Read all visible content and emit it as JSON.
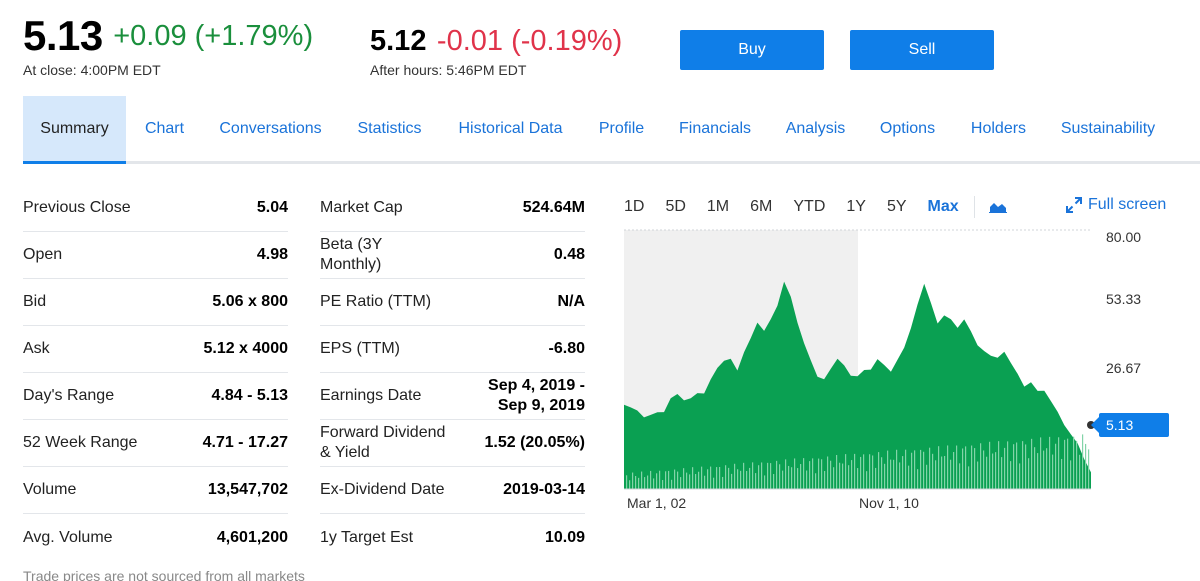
{
  "quote": {
    "price": "5.13",
    "change": "+0.09 (+1.79%)",
    "close_caption": "At close: 4:00PM EDT",
    "ah_price": "5.12",
    "ah_change": "-0.01 (-0.19%)",
    "ah_caption": "After hours: 5:46PM EDT"
  },
  "actions": {
    "buy": "Buy",
    "sell": "Sell"
  },
  "tabs": [
    {
      "label": "Summary"
    },
    {
      "label": "Chart"
    },
    {
      "label": "Conversations"
    },
    {
      "label": "Statistics"
    },
    {
      "label": "Historical Data"
    },
    {
      "label": "Profile"
    },
    {
      "label": "Financials"
    },
    {
      "label": "Analysis"
    },
    {
      "label": "Options"
    },
    {
      "label": "Holders"
    },
    {
      "label": "Sustainability"
    }
  ],
  "left_stats": [
    {
      "label": "Previous Close",
      "value": "5.04"
    },
    {
      "label": "Open",
      "value": "4.98"
    },
    {
      "label": "Bid",
      "value": "5.06 x 800"
    },
    {
      "label": "Ask",
      "value": "5.12 x 4000"
    },
    {
      "label": "Day's Range",
      "value": "4.84 - 5.13"
    },
    {
      "label": "52 Week Range",
      "value": "4.71 - 17.27"
    },
    {
      "label": "Volume",
      "value": "13,547,702"
    },
    {
      "label": "Avg. Volume",
      "value": "4,601,200"
    }
  ],
  "right_stats": [
    {
      "label": "Market Cap",
      "value": "524.64M"
    },
    {
      "label": "Beta (3Y Monthly)",
      "value": "0.48"
    },
    {
      "label": "PE Ratio (TTM)",
      "value": "N/A"
    },
    {
      "label": "EPS (TTM)",
      "value": "-6.80"
    },
    {
      "label": "Earnings Date",
      "value": "Sep 4, 2019 - Sep 9, 2019"
    },
    {
      "label": "Forward Dividend & Yield",
      "value": "1.52 (20.05%)"
    },
    {
      "label": "Ex-Dividend Date",
      "value": "2019-03-14"
    },
    {
      "label": "1y Target Est",
      "value": "10.09"
    }
  ],
  "disclaimer": "Trade prices are not sourced from all markets",
  "chart_controls": {
    "ranges": [
      "1D",
      "5D",
      "1M",
      "6M",
      "YTD",
      "1Y",
      "5Y",
      "Max"
    ],
    "active_range": "Max",
    "chart_type_icon": "mountain-chart-icon",
    "fullscreen_label": "Full screen",
    "fullscreen_icon": "expand-arrows-icon"
  },
  "chart_data": {
    "type": "area",
    "y_ticks": [
      "80.00",
      "53.33",
      "26.67"
    ],
    "x_ticks": [
      "Mar 1, 02",
      "Nov 1, 10"
    ],
    "ylim": [
      0,
      80
    ],
    "current_price_label": "5.13",
    "current_price": 5.13,
    "series": [
      {
        "values": [
          26,
          24,
          23,
          22,
          24,
          25,
          24,
          27,
          28,
          27,
          29,
          31,
          30,
          33,
          36,
          39,
          41,
          38,
          43,
          46,
          50,
          48,
          53,
          58,
          65,
          59,
          50,
          44,
          40,
          36,
          35,
          37,
          39,
          37,
          35,
          36,
          38,
          37,
          39,
          37,
          36,
          41,
          45,
          50,
          56,
          62,
          57,
          52,
          55,
          53,
          49,
          51,
          48,
          45,
          44,
          42,
          40,
          41,
          38,
          36,
          33,
          34,
          30,
          29,
          26,
          24,
          21,
          18,
          14,
          8,
          5.13
        ]
      }
    ],
    "colors": {
      "area": "#0aa052",
      "volume": "#82d4a8",
      "shade": "#f0f0f0",
      "price_tag": "#0f7ee8"
    }
  }
}
